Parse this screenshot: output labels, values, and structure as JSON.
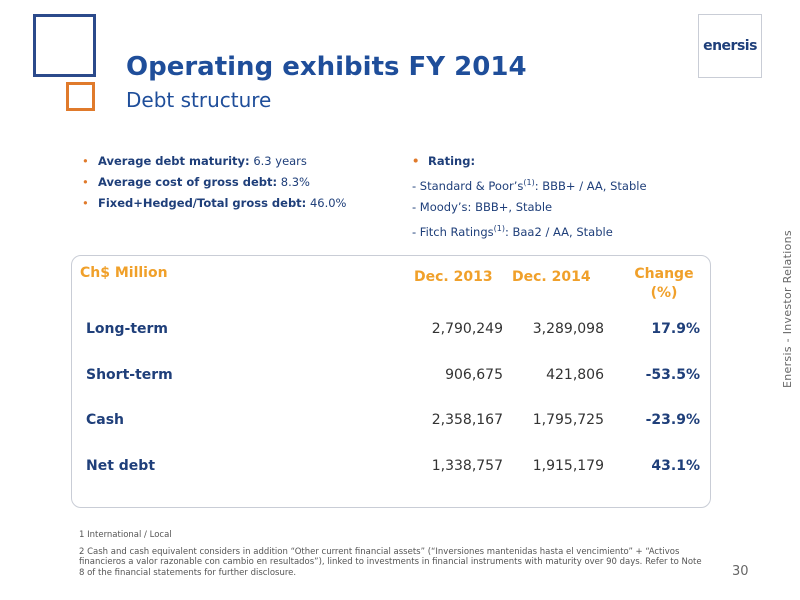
{
  "header": {
    "title": "Operating exhibits FY 2014",
    "subtitle": "Debt structure",
    "logo_text": "enersis"
  },
  "side_label": "Enersis - Investor Relations",
  "bullets": [
    {
      "label": "Average debt maturity:",
      "value": "6.3 years"
    },
    {
      "label": "Average cost of gross debt:",
      "value": "8.3%"
    },
    {
      "label": "Fixed+Hedged/Total gross debt:",
      "value": "46.0%"
    }
  ],
  "rating": {
    "heading": "Rating:",
    "lines": [
      {
        "pre": "- Standard & Poor’s",
        "sup": "(1)",
        "post": ": BBB+ / AA, Stable"
      },
      {
        "pre": "- Moody’s: BBB+, Stable",
        "sup": "",
        "post": ""
      },
      {
        "pre": "- Fitch Ratings",
        "sup": "(1)",
        "post": ": Baa2 / AA, Stable"
      }
    ]
  },
  "table": {
    "headers": {
      "unit": "Ch$ Million",
      "col1": "Dec. 2013",
      "col2": "Dec. 2014",
      "col3_line1": "Change",
      "col3_line2": "(%)"
    },
    "rows": [
      {
        "label": "Long-term",
        "dec2013": "2,790,249",
        "dec2014": "3,289,098",
        "change": "17.9%"
      },
      {
        "label": "Short-term",
        "dec2013": "906,675",
        "dec2014": "421,806",
        "change": "-53.5%"
      },
      {
        "label": "Cash",
        "dec2013": "2,358,167",
        "dec2014": "1,795,725",
        "change": "-23.9%"
      },
      {
        "label": "Net debt",
        "dec2013": "1,338,757",
        "dec2014": "1,915,179",
        "change": "43.1%"
      }
    ]
  },
  "footnotes": {
    "note1": "1 International / Local",
    "note2": "2 Cash and cash equivalent considers in addition “Other current financial assets” (“Inversiones mantenidas hasta el vencimiento” + “Activos financieros a valor razonable con cambio en resultados”), linked to investments in financial instruments with maturity over 90 days. Refer to Note 8 of the financial statements for further disclosure."
  },
  "page_number": "30",
  "colors": {
    "primary_blue": "#1f4e9a",
    "accent_orange": "#e07a2b",
    "header_gold": "#f0a02a"
  }
}
